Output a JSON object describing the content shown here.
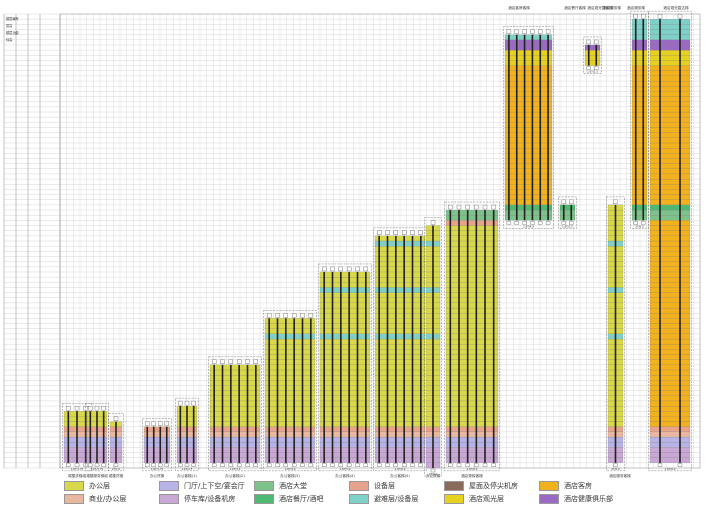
{
  "colors": {
    "office": "#d8d84a",
    "retail": "#e9b7a0",
    "lobby": "#b7b3e6",
    "parking": "#c9a8d6",
    "hotel_lobby": "#7ec28b",
    "hotel_restaurant": "#4fb872",
    "equipment": "#e7a38c",
    "refuge": "#7fd0c8",
    "roof_equipment": "#8a6a5a",
    "sky_lounge": "#e6d020",
    "hotel_room": "#f2b21e",
    "club": "#9a6bc2",
    "core": "#222222",
    "grid": "#c8c8c8"
  },
  "left_header": {
    "col_labels": [
      "楼层编号",
      "层高",
      "楼层功能",
      "标高"
    ],
    "function_label": "标准层"
  },
  "top_labels": [
    {
      "id": "hotel-rooms",
      "text": "酒店客房客梯"
    },
    {
      "id": "hotel-restaurant",
      "text": "酒店餐厅客梯"
    },
    {
      "id": "sky-lounge",
      "text": "酒店观光层客梯"
    },
    {
      "id": "hotel-service",
      "text": "酒店服务梯"
    },
    {
      "id": "hotel-service2",
      "text": "酒店服务梯"
    },
    {
      "id": "hotel-shuttle",
      "text": "酒店观光直达梯"
    }
  ],
  "bottom_labels": [
    "裙楼扶梯组",
    "裙楼服务梯组",
    "裙楼货梯",
    "办公货梯",
    "办公客梯(1)",
    "办公客梯(2)",
    "办公客梯(3)",
    "办公客梯(4)",
    "办公客梯(5)",
    "办公货梯",
    "酒店穿梭客梯",
    "酒店服务客梯"
  ],
  "groups": [
    {
      "name": "裙楼扶梯组",
      "cars": 3,
      "top_floor": 6,
      "bottom_floor": -3,
      "cap": "1.6T/1.75"
    },
    {
      "name": "裙楼服务梯组",
      "cars": 3,
      "top_floor": 6,
      "bottom_floor": -3,
      "cap": "1.6T/1.75"
    },
    {
      "name": "裙楼货梯",
      "cars": 1,
      "top_floor": 4,
      "bottom_floor": -3,
      "cap": "2T/1.0"
    },
    {
      "name": "办公货梯",
      "cars": 4,
      "top_floor": 3,
      "bottom_floor": -3,
      "cap": "1.6T/1.75"
    },
    {
      "name": "办公客梯(1)",
      "cars": 3,
      "top_floor": 7,
      "bottom_floor": -3,
      "cap": "1.6T/2.5"
    },
    {
      "name": "办公客梯(2)",
      "cars": 6,
      "top_floor": 15,
      "bottom_floor": -3,
      "cap": "1.6T/3.5"
    },
    {
      "name": "办公客梯(3)",
      "cars": 6,
      "top_floor": 24,
      "bottom_floor": -3,
      "cap": "1.6T/4.0"
    },
    {
      "name": "办公客梯(4)",
      "cars": 6,
      "top_floor": 33,
      "bottom_floor": -3,
      "cap": "1.6T/5.0"
    },
    {
      "name": "办公客梯(5)",
      "cars": 6,
      "top_floor": 40,
      "bottom_floor": -3,
      "cap": "1.6T/6.0"
    },
    {
      "name": "办公货梯",
      "cars": 1,
      "top_floor": 42,
      "bottom_floor": -4,
      "cap": "2T/6.0"
    },
    {
      "name": "酒店穿梭客梯",
      "cars": 6,
      "top_floor": 45,
      "bottom_floor": -3,
      "cap": "1.6T/8.0"
    },
    {
      "name": "酒店客房客梯",
      "cars": 6,
      "top_floor": 79,
      "bottom_floor": 44,
      "cap": "1.6T/4.0"
    },
    {
      "name": "酒店餐厅客梯",
      "cars": 2,
      "top_floor": 46,
      "bottom_floor": 44,
      "cap": "1.6T/2.5"
    },
    {
      "name": "酒店观光层客梯",
      "cars": 2,
      "top_floor": 77,
      "bottom_floor": 74,
      "cap": "1.6T/2.5"
    },
    {
      "name": "酒店服务梯",
      "cars": 1,
      "top_floor": 46,
      "bottom_floor": -3,
      "cap": "2T/6.0"
    },
    {
      "name": "酒店服务梯",
      "cars": 2,
      "top_floor": 82,
      "bottom_floor": 44,
      "cap": "2T/6.0"
    },
    {
      "name": "酒店观光直达梯",
      "cars": 2,
      "top_floor": 82,
      "bottom_floor": -3,
      "cap": "1.6T/8.0"
    }
  ],
  "legend": [
    {
      "label": "办公层",
      "color": "#d8d84a"
    },
    {
      "label": "门厅/上下空/宴会厅",
      "color": "#b7b3e6"
    },
    {
      "label": "酒店大堂",
      "color": "#7ec28b"
    },
    {
      "label": "设备层",
      "color": "#e7a38c"
    },
    {
      "label": "屋面及停尖机房",
      "color": "#8a6a5a"
    },
    {
      "label": "酒店客房",
      "color": "#f2b21e"
    },
    {
      "label": "商业/办公层",
      "color": "#e9b7a0"
    },
    {
      "label": "停车库/设备机房",
      "color": "#c9a8d6"
    },
    {
      "label": "酒店餐厅/酒吧",
      "color": "#4fb872"
    },
    {
      "label": "避难层/设备层",
      "color": "#7fd0c8"
    },
    {
      "label": "酒店观光层",
      "color": "#e6d020"
    },
    {
      "label": "酒店健康俱乐部",
      "color": "#9a6bc2"
    }
  ]
}
